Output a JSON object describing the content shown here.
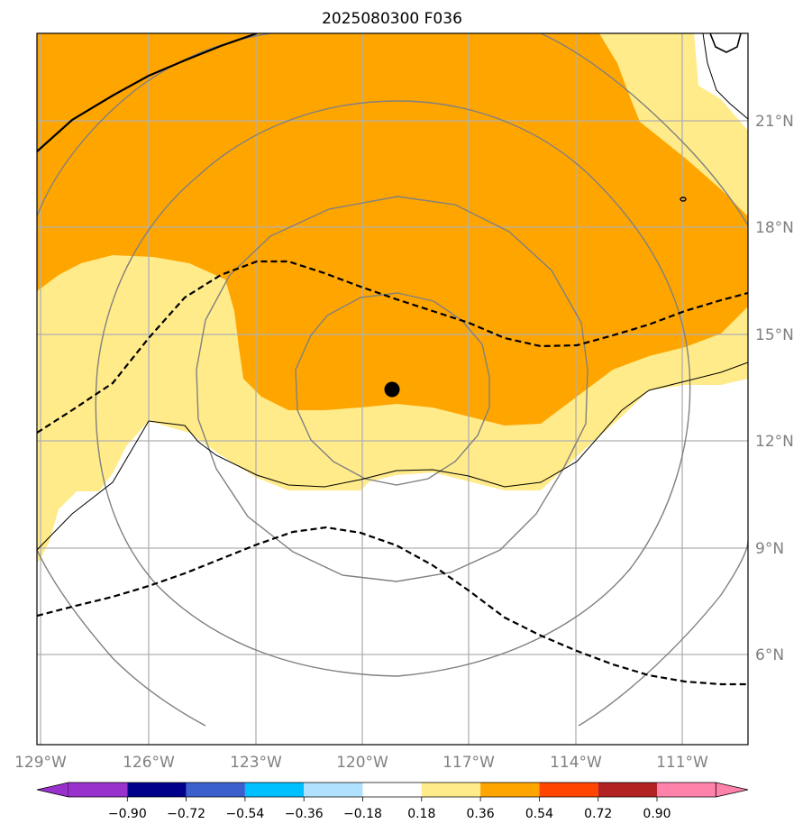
{
  "chart_data": {
    "type": "map-contour",
    "title": "2025080300 F036",
    "longitude_ticks": [
      "129°W",
      "126°W",
      "123°W",
      "120°W",
      "117°W",
      "114°W",
      "111°W"
    ],
    "latitude_ticks": [
      "21°N",
      "18°N",
      "15°N",
      "12°N",
      "9°N",
      "6°N"
    ],
    "colorbar": {
      "boundaries": [
        "−0.90",
        "−0.72",
        "−0.54",
        "−0.36",
        "−0.18",
        "0.18",
        "0.36",
        "0.54",
        "0.72",
        "0.90"
      ],
      "colors": [
        "#9932cc",
        "#00008b",
        "#3a5fcd",
        "#00bfff",
        "#b0e2ff",
        "#ffffff",
        "#ffeb8a",
        "#ffa500",
        "#ff4500",
        "#b22222",
        "#ff82ab"
      ],
      "extend": "both"
    },
    "filled_levels_present": [
      "0.18 to 0.36",
      "0.36 to 0.54"
    ],
    "storm_center": {
      "lon": -119.1,
      "lat": 13.4
    },
    "range_rings": "concentric circles around storm center",
    "dashed_contours": 2
  }
}
